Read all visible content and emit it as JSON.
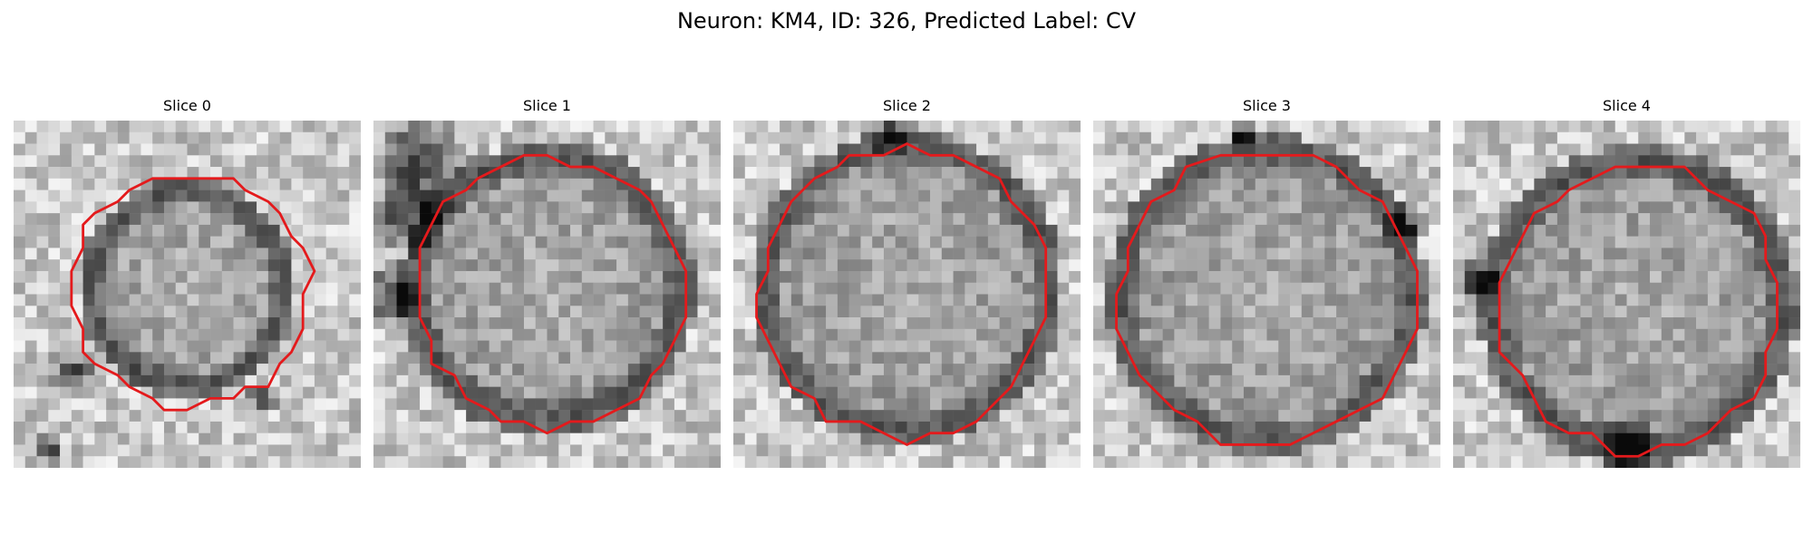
{
  "figure": {
    "title": "Neuron: KM4, ID: 326, Predicted Label: CV"
  },
  "panels": [
    {
      "title": "Slice 0"
    },
    {
      "title": "Slice 1"
    },
    {
      "title": "Slice 2"
    },
    {
      "title": "Slice 3"
    },
    {
      "title": "Slice 4"
    }
  ],
  "colors": {
    "contour": "#e41a1c",
    "background": "#ffffff"
  }
}
